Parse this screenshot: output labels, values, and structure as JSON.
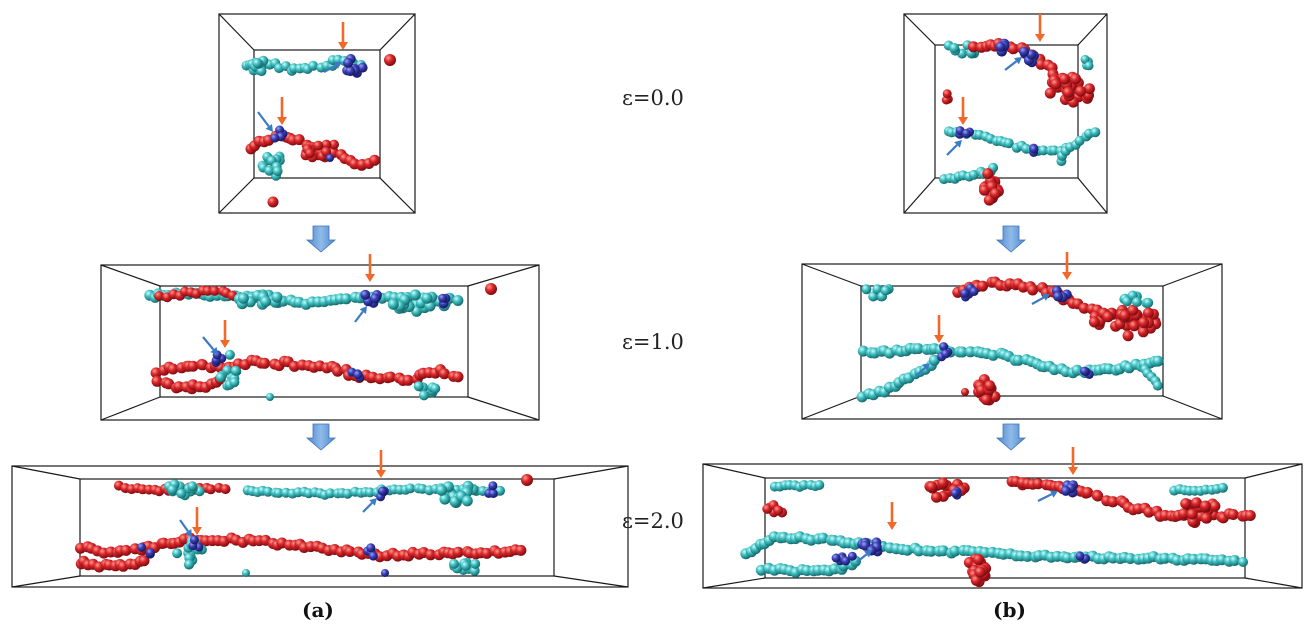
{
  "strain_labels": [
    "ε=0.0",
    "ε=1.0",
    "ε=2.0"
  ],
  "panel_labels": [
    "(a)",
    "(b)"
  ],
  "colors": {
    "chain_red": "#d8262b",
    "chain_cyan": "#3fbdbf",
    "crosslink_blue": "#3a3fb0",
    "marker_orange": "#f0682a",
    "marker_blue": "#3c7bc4",
    "step_arrow": "#6fa3dc",
    "box_line": "#1a1a1a"
  }
}
